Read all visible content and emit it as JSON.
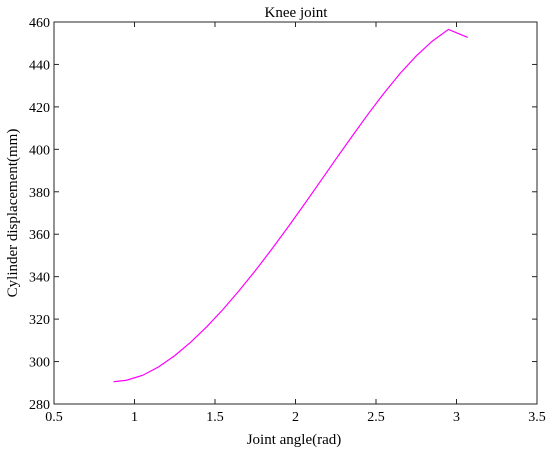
{
  "chart_data": {
    "type": "line",
    "title": "Knee joint",
    "xlabel": "Joint angle(rad)",
    "ylabel": "Cylinder displacement(mm)",
    "xlim": [
      0.5,
      3.5
    ],
    "ylim": [
      280,
      460
    ],
    "xticks": [
      0.5,
      1,
      1.5,
      2,
      2.5,
      3,
      3.5
    ],
    "xtick_labels": [
      "0.5",
      "1",
      "1.5",
      "2",
      "2.5",
      "3",
      "3.5"
    ],
    "yticks": [
      280,
      300,
      320,
      340,
      360,
      380,
      400,
      420,
      440,
      460
    ],
    "ytick_labels": [
      "280",
      "300",
      "320",
      "340",
      "360",
      "380",
      "400",
      "420",
      "440",
      "460"
    ],
    "grid": false,
    "series": [
      {
        "color": "#ff00ff",
        "x": [
          0.87,
          0.95,
          1.05,
          1.15,
          1.25,
          1.35,
          1.45,
          1.55,
          1.65,
          1.75,
          1.85,
          1.95,
          2.05,
          2.15,
          2.25,
          2.35,
          2.45,
          2.55,
          2.65,
          2.75,
          2.85,
          2.95,
          3.07
        ],
        "y": [
          290.5,
          291.2,
          293.5,
          297.5,
          302.8,
          309.2,
          316.5,
          324.6,
          333.4,
          342.8,
          352.7,
          363.0,
          373.6,
          384.4,
          395.3,
          406.0,
          416.5,
          426.5,
          435.8,
          444.0,
          451.0,
          456.5,
          452.7
        ]
      }
    ]
  }
}
